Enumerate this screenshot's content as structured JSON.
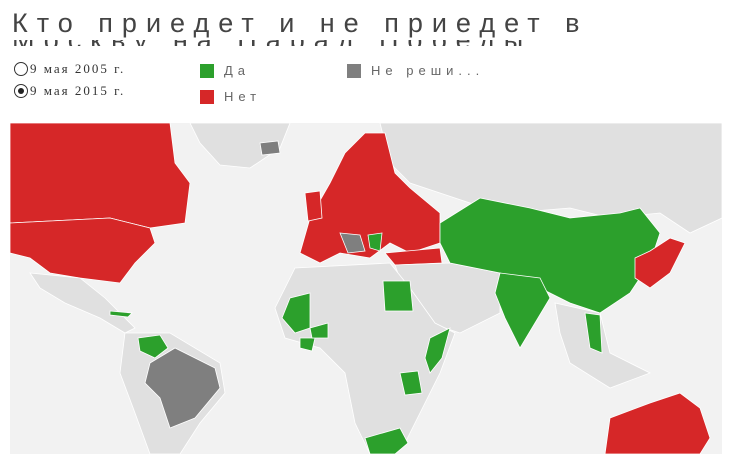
{
  "title": "Кто приедет и не приедет в",
  "title_cut": "Москву на Парад Победы",
  "dates": [
    {
      "label": "9 мая 2005 г.",
      "selected": false
    },
    {
      "label": "9 мая 2015 г.",
      "selected": true
    }
  ],
  "legend": [
    {
      "label": "Да",
      "color": "#2ca02c"
    },
    {
      "label": "Нет",
      "color": "#d62728"
    },
    {
      "label": "Не реши...",
      "color": "#7f7f7f"
    }
  ],
  "map": {
    "no_data_color": "#e0e0e0",
    "border_color": "#ffffff"
  }
}
